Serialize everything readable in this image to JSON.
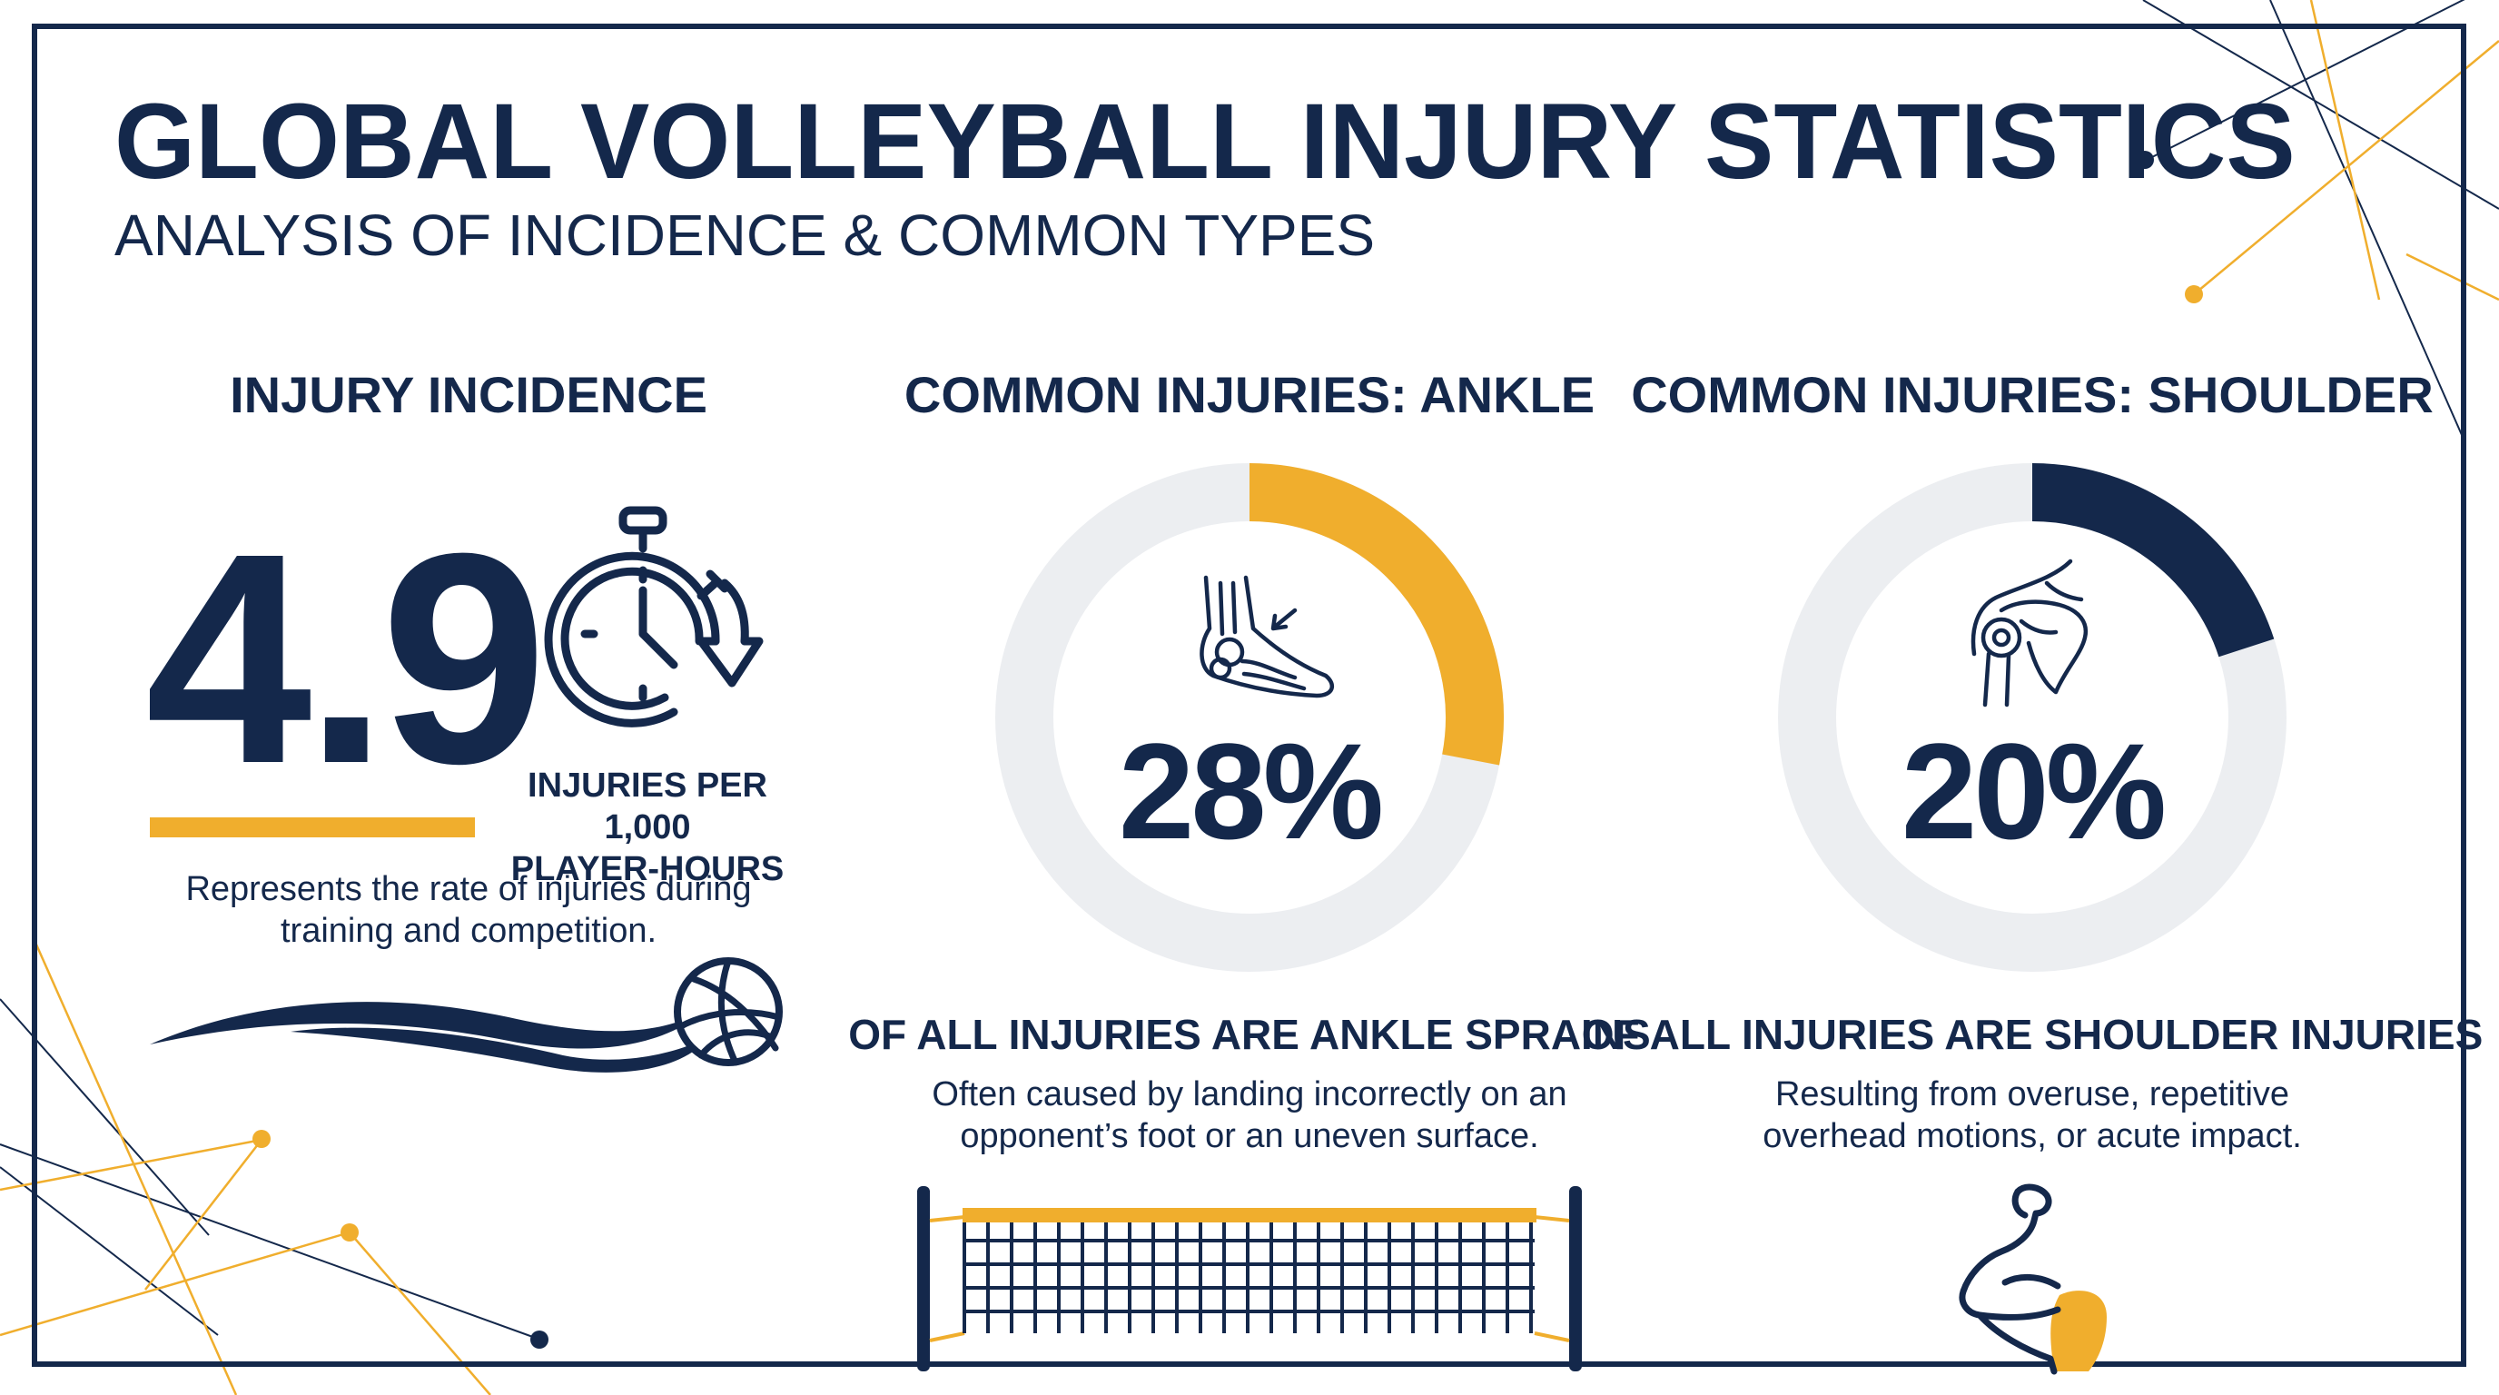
{
  "header": {
    "title": "GLOBAL VOLLEYBALL INJURY STATISTICS",
    "subtitle": "ANALYSIS OF INCIDENCE & COMMON TYPES"
  },
  "colors": {
    "navy": "#14284b",
    "accent": "#f0ae2d",
    "ring_track": "#eceef1"
  },
  "incidence": {
    "heading": "INJURY INCIDENCE",
    "value": "4.9",
    "unit_line1": "INJURIES PER 1,000",
    "unit_line2": "PLAYER-HOURS",
    "desc_line1": "Represents the rate of injuries during",
    "desc_line2": "training and competition.",
    "icons": [
      "stopwatch-icon",
      "volleyball-icon"
    ]
  },
  "ankle": {
    "heading": "COMMON INJURIES: ANKLE",
    "percent_label": "28%",
    "percent_value": 28,
    "caption": "OF ALL INJURIES ARE ANKLE SPRAINS",
    "desc_line1": "Often caused by landing incorrectly on an",
    "desc_line2": "opponent’s foot or an uneven surface.",
    "icon": "ankle-icon",
    "ring_color": "#f0ae2d"
  },
  "shoulder": {
    "heading": "COMMON INJURIES: SHOULDER",
    "percent_label": "20%",
    "percent_value": 20,
    "caption": "OF ALL INJURIES ARE SHOULDER INJURIES",
    "desc_line1": "Resulting from overuse, repetitive",
    "desc_line2": "overhead motions, or acute impact.",
    "icon": "shoulder-icon",
    "ring_color": "#14284b"
  }
}
